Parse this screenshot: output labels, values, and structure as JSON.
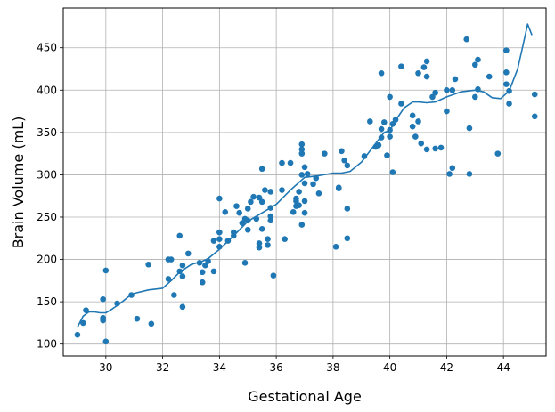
{
  "chart_data": {
    "type": "scatter",
    "title": "",
    "xlabel": "Gestational Age",
    "ylabel": "Brain Volume (mL)",
    "xlim": [
      28.5,
      45.5
    ],
    "ylim": [
      86,
      497
    ],
    "xticks": [
      30,
      32,
      34,
      36,
      38,
      40,
      42,
      44
    ],
    "yticks": [
      100,
      150,
      200,
      250,
      300,
      350,
      400,
      450
    ],
    "grid": true,
    "legend": "none",
    "colors": {
      "points": "#1f77b4",
      "line": "#1f77b4",
      "grid": "#b0b0b0"
    },
    "points": [
      [
        29.0,
        111
      ],
      [
        29.2,
        125
      ],
      [
        29.3,
        140
      ],
      [
        29.9,
        153
      ],
      [
        29.9,
        131
      ],
      [
        29.9,
        128
      ],
      [
        30.0,
        103
      ],
      [
        30.0,
        187
      ],
      [
        30.4,
        148
      ],
      [
        30.9,
        158
      ],
      [
        31.1,
        130
      ],
      [
        31.5,
        194
      ],
      [
        31.6,
        124
      ],
      [
        32.2,
        177
      ],
      [
        32.2,
        200
      ],
      [
        32.3,
        200
      ],
      [
        32.4,
        158
      ],
      [
        32.6,
        228
      ],
      [
        32.6,
        186
      ],
      [
        32.7,
        144
      ],
      [
        32.7,
        193
      ],
      [
        32.7,
        180
      ],
      [
        32.9,
        207
      ],
      [
        33.3,
        196
      ],
      [
        33.4,
        173
      ],
      [
        33.4,
        185
      ],
      [
        33.5,
        193
      ],
      [
        33.6,
        198
      ],
      [
        33.8,
        186
      ],
      [
        33.8,
        222
      ],
      [
        34.0,
        272
      ],
      [
        34.0,
        232
      ],
      [
        34.0,
        224
      ],
      [
        34.0,
        215
      ],
      [
        34.2,
        256
      ],
      [
        34.3,
        222
      ],
      [
        34.5,
        228
      ],
      [
        34.5,
        232
      ],
      [
        34.6,
        263
      ],
      [
        34.7,
        255
      ],
      [
        34.8,
        243
      ],
      [
        34.9,
        196
      ],
      [
        34.9,
        248
      ],
      [
        35.0,
        260
      ],
      [
        35.0,
        246
      ],
      [
        35.0,
        235
      ],
      [
        35.1,
        268
      ],
      [
        35.2,
        274
      ],
      [
        35.3,
        248
      ],
      [
        35.4,
        214
      ],
      [
        35.4,
        273
      ],
      [
        35.4,
        219
      ],
      [
        35.5,
        236
      ],
      [
        35.5,
        307
      ],
      [
        35.5,
        268
      ],
      [
        35.6,
        282
      ],
      [
        35.7,
        224
      ],
      [
        35.7,
        217
      ],
      [
        35.8,
        251
      ],
      [
        35.8,
        261
      ],
      [
        35.8,
        246
      ],
      [
        35.8,
        280
      ],
      [
        35.9,
        181
      ],
      [
        36.2,
        314
      ],
      [
        36.2,
        282
      ],
      [
        36.3,
        224
      ],
      [
        36.5,
        314
      ],
      [
        36.6,
        256
      ],
      [
        36.7,
        269
      ],
      [
        36.7,
        263
      ],
      [
        36.7,
        272
      ],
      [
        36.8,
        280
      ],
      [
        36.8,
        264
      ],
      [
        36.9,
        336
      ],
      [
        36.9,
        330
      ],
      [
        36.9,
        325
      ],
      [
        36.9,
        300
      ],
      [
        36.9,
        241
      ],
      [
        37.0,
        309
      ],
      [
        37.0,
        290
      ],
      [
        37.0,
        269
      ],
      [
        37.0,
        255
      ],
      [
        37.1,
        301
      ],
      [
        37.3,
        289
      ],
      [
        37.4,
        296
      ],
      [
        37.5,
        278
      ],
      [
        37.7,
        325
      ],
      [
        38.1,
        215
      ],
      [
        38.2,
        284
      ],
      [
        38.2,
        285
      ],
      [
        38.3,
        328
      ],
      [
        38.4,
        317
      ],
      [
        38.5,
        311
      ],
      [
        38.5,
        260
      ],
      [
        38.5,
        225
      ],
      [
        39.1,
        322
      ],
      [
        39.3,
        363
      ],
      [
        39.5,
        333
      ],
      [
        39.6,
        335
      ],
      [
        39.7,
        354
      ],
      [
        39.7,
        344
      ],
      [
        39.7,
        420
      ],
      [
        39.8,
        362
      ],
      [
        39.9,
        323
      ],
      [
        40.0,
        353
      ],
      [
        40.0,
        345
      ],
      [
        40.0,
        392
      ],
      [
        40.1,
        360
      ],
      [
        40.1,
        303
      ],
      [
        40.2,
        365
      ],
      [
        40.4,
        428
      ],
      [
        40.4,
        384
      ],
      [
        40.8,
        370
      ],
      [
        40.8,
        357
      ],
      [
        40.9,
        345
      ],
      [
        41.0,
        420
      ],
      [
        41.0,
        363
      ],
      [
        41.1,
        337
      ],
      [
        41.2,
        427
      ],
      [
        41.3,
        434
      ],
      [
        41.3,
        416
      ],
      [
        41.3,
        330
      ],
      [
        41.5,
        392
      ],
      [
        41.6,
        331
      ],
      [
        41.6,
        397
      ],
      [
        41.8,
        332
      ],
      [
        42.0,
        400
      ],
      [
        42.0,
        375
      ],
      [
        42.1,
        301
      ],
      [
        42.2,
        400
      ],
      [
        42.2,
        308
      ],
      [
        42.3,
        413
      ],
      [
        42.7,
        460
      ],
      [
        42.8,
        355
      ],
      [
        42.8,
        301
      ],
      [
        43.0,
        430
      ],
      [
        43.0,
        392
      ],
      [
        43.1,
        436
      ],
      [
        43.1,
        401
      ],
      [
        43.5,
        416
      ],
      [
        43.8,
        325
      ],
      [
        44.1,
        447
      ],
      [
        44.1,
        421
      ],
      [
        44.1,
        407
      ],
      [
        44.2,
        384
      ],
      [
        44.2,
        399
      ],
      [
        45.1,
        395
      ],
      [
        45.1,
        369
      ]
    ],
    "fit_line": [
      [
        29.0,
        120
      ],
      [
        29.2,
        133
      ],
      [
        29.4,
        138
      ],
      [
        29.6,
        138
      ],
      [
        29.8,
        137
      ],
      [
        30.0,
        137
      ],
      [
        30.2,
        141
      ],
      [
        30.5,
        148
      ],
      [
        30.8,
        156
      ],
      [
        31.0,
        160
      ],
      [
        31.5,
        164
      ],
      [
        32.0,
        166
      ],
      [
        32.3,
        175
      ],
      [
        32.6,
        185
      ],
      [
        33.0,
        194
      ],
      [
        33.4,
        198
      ],
      [
        33.6,
        201
      ],
      [
        34.0,
        212
      ],
      [
        34.5,
        228
      ],
      [
        35.0,
        245
      ],
      [
        35.5,
        255
      ],
      [
        36.0,
        265
      ],
      [
        36.5,
        282
      ],
      [
        37.0,
        297
      ],
      [
        37.5,
        299
      ],
      [
        38.0,
        302
      ],
      [
        38.3,
        302
      ],
      [
        38.6,
        304
      ],
      [
        39.0,
        315
      ],
      [
        39.5,
        337
      ],
      [
        39.8,
        350
      ],
      [
        40.0,
        352
      ],
      [
        40.2,
        364
      ],
      [
        40.5,
        379
      ],
      [
        40.8,
        386
      ],
      [
        41.0,
        386
      ],
      [
        41.3,
        385
      ],
      [
        41.6,
        386
      ],
      [
        42.0,
        392
      ],
      [
        42.5,
        398
      ],
      [
        43.0,
        400
      ],
      [
        43.3,
        398
      ],
      [
        43.6,
        391
      ],
      [
        43.9,
        390
      ],
      [
        44.2,
        399
      ],
      [
        44.5,
        425
      ],
      [
        44.7,
        455
      ],
      [
        44.85,
        478
      ],
      [
        45.0,
        465
      ]
    ]
  }
}
